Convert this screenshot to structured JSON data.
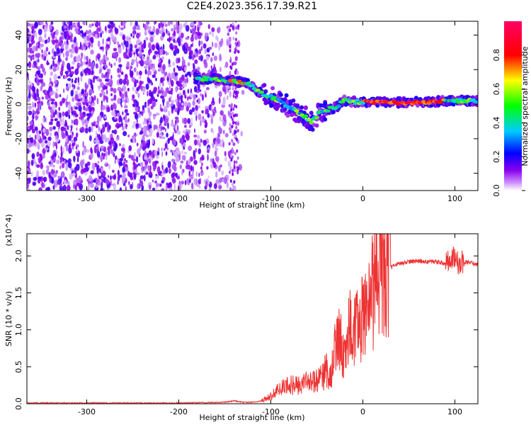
{
  "title": "C2E4.2023.356.17.39.R21",
  "chart_data": [
    {
      "type": "heatmap",
      "xlabel": "Height of straight line (km)",
      "ylabel": "Frequency (Hz)",
      "xlim": [
        -365,
        125
      ],
      "ylim": [
        -50,
        48
      ],
      "xticks": [
        -300,
        -200,
        -100,
        0,
        100
      ],
      "yticks": [
        -40,
        -20,
        0,
        20,
        40
      ],
      "colorbar": {
        "label": "Normalized spectral amplitude",
        "range": [
          0,
          1
        ],
        "ticks": [
          0.0,
          0.2,
          0.4,
          0.6,
          0.8
        ],
        "colormap": [
          "#ffffff",
          "#8800ee",
          "#0000ff",
          "#00ccff",
          "#00ff00",
          "#ffff00",
          "#ff0000",
          "#ff0066"
        ]
      },
      "ridge": [
        {
          "x": -180,
          "y": 15
        },
        {
          "x": -150,
          "y": 14
        },
        {
          "x": -125,
          "y": 12
        },
        {
          "x": -110,
          "y": 6
        },
        {
          "x": -90,
          "y": 2
        },
        {
          "x": -70,
          "y": -5
        },
        {
          "x": -55,
          "y": -10
        },
        {
          "x": -45,
          "y": -4
        },
        {
          "x": -30,
          "y": -2
        },
        {
          "x": -20,
          "y": 2
        },
        {
          "x": 0,
          "y": 1
        },
        {
          "x": 50,
          "y": 1
        },
        {
          "x": 100,
          "y": 2
        },
        {
          "x": 125,
          "y": 2
        }
      ],
      "noise_region_x": [
        -365,
        -130
      ]
    },
    {
      "type": "line",
      "xlabel": "Height of straight line (km)",
      "ylabel": "SNR (10 * v/v)",
      "y_multiplier": "(x10^4)",
      "xlim": [
        -365,
        125
      ],
      "ylim": [
        0,
        2.3
      ],
      "xticks": [
        -300,
        -200,
        -100,
        0,
        100
      ],
      "yticks": [
        0.0,
        0.5,
        1.0,
        1.5,
        2.0
      ],
      "color": "#ee3333",
      "series": [
        {
          "x": [
            -365,
            -300,
            -200,
            -150,
            -140,
            -130,
            -120,
            -110,
            -100,
            -90,
            -80,
            -70,
            -60,
            -50,
            -45,
            -40,
            -35,
            -30,
            -25,
            -20,
            -15,
            -10,
            -5,
            0,
            5,
            10,
            15,
            20,
            25,
            30,
            40,
            50,
            60,
            70,
            80,
            90,
            95,
            100,
            105,
            110,
            120,
            125
          ],
          "y": [
            0.01,
            0.01,
            0.01,
            0.02,
            0.04,
            0.02,
            0.02,
            0.04,
            0.1,
            0.2,
            0.25,
            0.25,
            0.3,
            0.3,
            0.35,
            0.45,
            0.35,
            0.75,
            0.9,
            0.6,
            1.0,
            1.05,
            1.0,
            1.2,
            1.3,
            1.5,
            1.7,
            1.75,
            1.8,
            1.85,
            1.9,
            1.92,
            1.93,
            1.92,
            1.92,
            1.9,
            1.95,
            2.0,
            1.9,
            1.92,
            1.9,
            1.88
          ]
        }
      ]
    }
  ]
}
